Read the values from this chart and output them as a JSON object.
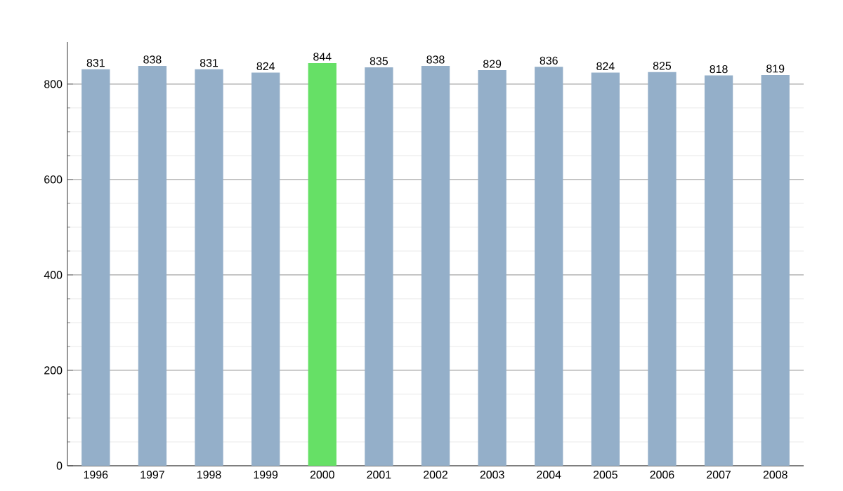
{
  "chart_data": {
    "type": "bar",
    "categories": [
      "1996",
      "1997",
      "1998",
      "1999",
      "2000",
      "2001",
      "2002",
      "2003",
      "2004",
      "2005",
      "2006",
      "2007",
      "2008"
    ],
    "values": [
      831,
      838,
      831,
      824,
      844,
      835,
      838,
      829,
      836,
      824,
      825,
      818,
      819
    ],
    "colors": [
      "#94afc9",
      "#94afc9",
      "#94afc9",
      "#94afc9",
      "#66e066",
      "#94afc9",
      "#94afc9",
      "#94afc9",
      "#94afc9",
      "#94afc9",
      "#94afc9",
      "#94afc9",
      "#94afc9"
    ],
    "ylim": [
      0,
      888
    ],
    "yticks": [
      0,
      200,
      400,
      600,
      800
    ],
    "grid": "y",
    "data_labels": true
  }
}
